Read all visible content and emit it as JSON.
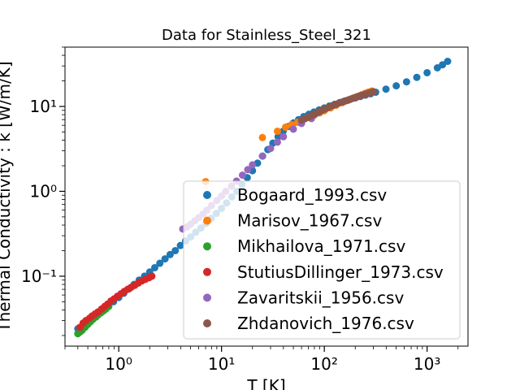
{
  "chart_data": {
    "type": "scatter",
    "title": "Data for Stainless_Steel_321",
    "xlabel": "T [K]",
    "ylabel": "Thermal Conductivity : k [W/m/K]",
    "xscale": "log",
    "yscale": "log",
    "xlim": [
      0.3,
      2500
    ],
    "ylim": [
      0.015,
      50
    ],
    "xticks": [
      {
        "value": 1,
        "label": "10⁰"
      },
      {
        "value": 10,
        "label": "10¹"
      },
      {
        "value": 100,
        "label": "10²"
      },
      {
        "value": 1000,
        "label": "10³"
      }
    ],
    "yticks": [
      {
        "value": 0.1,
        "label": "10⁻¹"
      },
      {
        "value": 1,
        "label": "10⁰"
      },
      {
        "value": 10,
        "label": "10¹"
      }
    ],
    "grid": false,
    "legend_position": "lower right",
    "series": [
      {
        "name": "Bogaard_1993.csv",
        "color": "#1f77b4",
        "x": [
          0.4,
          0.45,
          0.5,
          0.56,
          0.63,
          0.7,
          0.79,
          0.89,
          1.0,
          1.12,
          1.26,
          1.41,
          1.58,
          1.78,
          2.0,
          2.24,
          2.51,
          2.82,
          3.16,
          3.55,
          3.98,
          4.47,
          5.01,
          5.62,
          6.31,
          7.08,
          7.94,
          8.91,
          10.0,
          11.2,
          12.6,
          14.1,
          15.8,
          17.8,
          20.0,
          22.4,
          25.1,
          28.2,
          31.6,
          35.5,
          39.8,
          44.7,
          50.1,
          56.2,
          63.1,
          70.8,
          79.4,
          89.1,
          100,
          112,
          126,
          141,
          158,
          178,
          200,
          224,
          251,
          282,
          316,
          398,
          501,
          631,
          794,
          1000,
          1259,
          1412,
          1585
        ],
        "y": [
          0.024,
          0.026,
          0.029,
          0.032,
          0.036,
          0.04,
          0.045,
          0.05,
          0.056,
          0.063,
          0.071,
          0.08,
          0.09,
          0.1,
          0.112,
          0.126,
          0.142,
          0.16,
          0.18,
          0.2,
          0.23,
          0.26,
          0.29,
          0.33,
          0.37,
          0.42,
          0.48,
          0.55,
          0.63,
          0.73,
          0.86,
          1.0,
          1.2,
          1.45,
          1.75,
          2.15,
          2.6,
          3.1,
          3.7,
          4.4,
          5.1,
          5.8,
          6.4,
          7.0,
          7.6,
          8.1,
          8.6,
          9.1,
          9.6,
          10.1,
          10.6,
          11.1,
          11.6,
          12.1,
          12.6,
          13.1,
          13.6,
          14.1,
          14.7,
          16.0,
          17.5,
          19.5,
          22.0,
          25.0,
          28.5,
          31.0,
          34.0
        ]
      },
      {
        "name": "Marisov_1967.csv",
        "color": "#ff7f0e",
        "x": [
          7.0,
          25.0,
          35.0,
          42.0,
          48.0,
          55.0,
          62.0,
          70.0,
          80.0,
          90.0,
          100,
          115,
          130,
          150,
          170,
          190,
          210,
          230,
          250,
          270,
          290
        ],
        "y": [
          1.3,
          4.3,
          5.1,
          5.7,
          6.1,
          6.5,
          6.9,
          7.4,
          7.9,
          8.4,
          8.9,
          9.6,
          10.3,
          11.1,
          11.8,
          12.5,
          13.1,
          13.7,
          14.3,
          14.8,
          15.2
        ]
      },
      {
        "name": "Mikhailova_1971.csv",
        "color": "#2ca02c",
        "x": [
          0.4,
          0.42,
          0.44,
          0.47,
          0.5,
          0.53,
          0.56,
          0.6,
          0.63,
          0.67,
          0.71,
          0.75,
          0.8
        ],
        "y": [
          0.021,
          0.022,
          0.023,
          0.025,
          0.027,
          0.029,
          0.031,
          0.033,
          0.035,
          0.037,
          0.039,
          0.041,
          0.044
        ]
      },
      {
        "name": "StutiusDillinger_1973.csv",
        "color": "#d62728",
        "x": [
          0.42,
          0.45,
          0.48,
          0.52,
          0.55,
          0.59,
          0.63,
          0.68,
          0.73,
          0.78,
          0.84,
          0.9,
          0.97,
          1.05,
          1.13,
          1.22,
          1.32,
          1.43,
          1.55,
          1.68,
          1.82,
          1.97,
          2.1
        ],
        "y": [
          0.025,
          0.028,
          0.03,
          0.032,
          0.034,
          0.036,
          0.038,
          0.041,
          0.044,
          0.047,
          0.051,
          0.054,
          0.058,
          0.062,
          0.066,
          0.07,
          0.074,
          0.078,
          0.083,
          0.088,
          0.092,
          0.096,
          0.1
        ]
      },
      {
        "name": "Zavaritskii_1956.csv",
        "color": "#9467bd",
        "x": [
          4.2,
          4.6,
          5.0,
          5.5,
          6.0,
          6.6,
          7.2,
          8.0,
          9.0,
          10.0,
          11.0,
          12.5,
          14.0,
          16.0,
          18.0,
          20.0,
          25.0,
          30.0,
          35.0,
          40.0,
          50.0,
          60.0,
          75.0
        ],
        "y": [
          0.36,
          0.38,
          0.41,
          0.45,
          0.49,
          0.54,
          0.6,
          0.68,
          0.78,
          0.88,
          1.0,
          1.15,
          1.32,
          1.55,
          1.8,
          2.05,
          2.6,
          3.2,
          3.8,
          4.4,
          5.4,
          6.3,
          7.2
        ]
      },
      {
        "name": "Zhdanovich_1976.csv",
        "color": "#8c564b",
        "x": [
          60,
          65,
          70,
          75,
          80,
          85,
          90,
          95,
          100,
          105,
          110,
          120,
          130,
          140,
          150,
          160,
          170,
          180,
          190,
          200,
          210,
          220,
          230,
          240,
          250,
          260,
          270,
          280,
          290,
          300
        ],
        "y": [
          6.9,
          7.2,
          7.5,
          7.8,
          8.1,
          8.4,
          8.7,
          9.0,
          9.3,
          9.5,
          9.8,
          10.2,
          10.6,
          11.0,
          11.3,
          11.6,
          11.9,
          12.2,
          12.5,
          12.8,
          13.0,
          13.3,
          13.5,
          13.7,
          13.9,
          14.1,
          14.3,
          14.5,
          14.7,
          14.9
        ]
      }
    ]
  }
}
